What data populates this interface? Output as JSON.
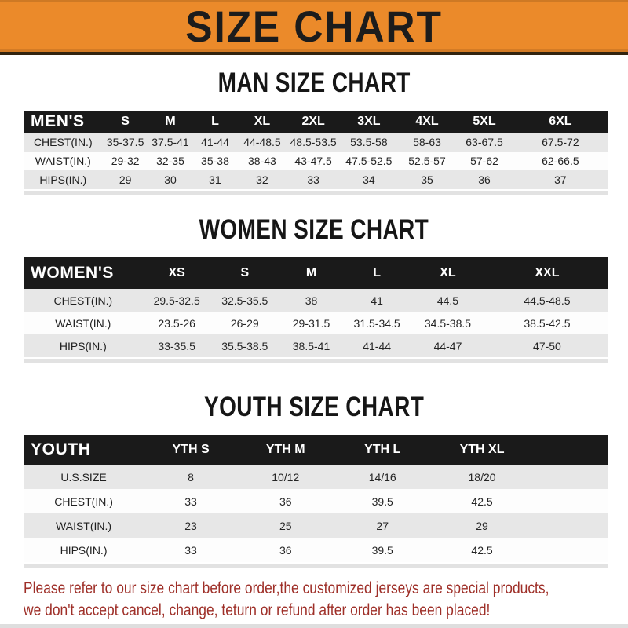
{
  "title": "SIZE CHART",
  "colors": {
    "accent_orange": "#EB8A2A",
    "header_bar_black": "#1A1A1A",
    "row_gray": "#E7E7E7",
    "notice_red": "#9E2F28"
  },
  "sections": [
    {
      "heading": "MAN SIZE CHART",
      "label": "MEN'S",
      "columns": [
        "S",
        "M",
        "L",
        "XL",
        "2XL",
        "3XL",
        "4XL",
        "5XL",
        "6XL"
      ],
      "rows": [
        {
          "label": "CHEST(IN.)",
          "values": [
            "35-37.5",
            "37.5-41",
            "41-44",
            "44-48.5",
            "48.5-53.5",
            "53.5-58",
            "58-63",
            "63-67.5",
            "67.5-72"
          ]
        },
        {
          "label": "WAIST(IN.)",
          "values": [
            "29-32",
            "32-35",
            "35-38",
            "38-43",
            "43-47.5",
            "47.5-52.5",
            "52.5-57",
            "57-62",
            "62-66.5"
          ]
        },
        {
          "label": "HIPS(IN.)",
          "values": [
            "29",
            "30",
            "31",
            "32",
            "33",
            "34",
            "35",
            "36",
            "37"
          ]
        }
      ]
    },
    {
      "heading": "WOMEN SIZE CHART",
      "label": "WOMEN'S",
      "columns": [
        "XS",
        "S",
        "M",
        "L",
        "XL",
        "XXL"
      ],
      "rows": [
        {
          "label": "CHEST(IN.)",
          "values": [
            "29.5-32.5",
            "32.5-35.5",
            "38",
            "41",
            "44.5",
            "44.5-48.5"
          ]
        },
        {
          "label": "WAIST(IN.)",
          "values": [
            "23.5-26",
            "26-29",
            "29-31.5",
            "31.5-34.5",
            "34.5-38.5",
            "38.5-42.5"
          ]
        },
        {
          "label": "HIPS(IN.)",
          "values": [
            "33-35.5",
            "35.5-38.5",
            "38.5-41",
            "41-44",
            "44-47",
            "47-50"
          ]
        }
      ]
    },
    {
      "heading": "YOUTH SIZE CHART",
      "label": "YOUTH",
      "columns": [
        "YTH S",
        "YTH M",
        "YTH L",
        "YTH XL"
      ],
      "rows": [
        {
          "label": "U.S.SIZE",
          "values": [
            "8",
            "10/12",
            "14/16",
            "18/20"
          ]
        },
        {
          "label": "CHEST(IN.)",
          "values": [
            "33",
            "36",
            "39.5",
            "42.5"
          ]
        },
        {
          "label": "WAIST(IN.)",
          "values": [
            "23",
            "25",
            "27",
            "29"
          ]
        },
        {
          "label": "HIPS(IN.)",
          "values": [
            "33",
            "36",
            "39.5",
            "42.5"
          ]
        }
      ]
    }
  ],
  "footer": {
    "line1": "Please refer to our size chart before order,the customized jerseys are special products,",
    "line2": "we don't accept cancel, change, teturn or refund after order has been placed!"
  }
}
